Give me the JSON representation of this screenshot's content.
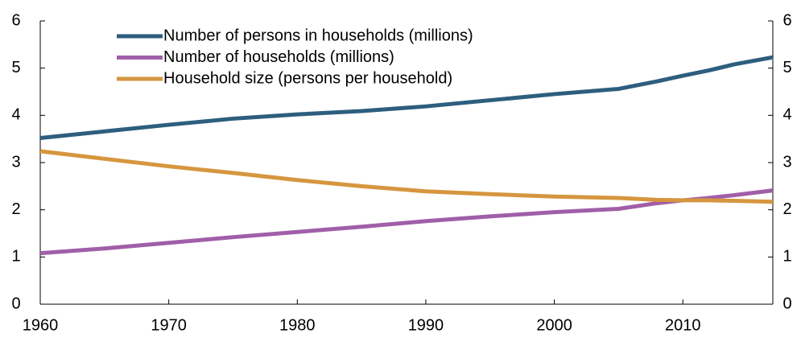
{
  "chart_data": {
    "type": "line",
    "x": [
      1960,
      1965,
      1970,
      1975,
      1980,
      1985,
      1990,
      1995,
      2000,
      2005,
      2008,
      2010,
      2012,
      2014,
      2017
    ],
    "series": [
      {
        "name": "Number of persons in households (millions)",
        "color": "#2d5e7e",
        "values": [
          3.52,
          3.66,
          3.8,
          3.93,
          4.02,
          4.09,
          4.19,
          4.32,
          4.45,
          4.56,
          4.72,
          4.84,
          4.95,
          5.08,
          5.23
        ]
      },
      {
        "name": "Number of households (millions)",
        "color": "#a05fa8",
        "values": [
          1.08,
          1.18,
          1.3,
          1.42,
          1.53,
          1.64,
          1.76,
          1.86,
          1.95,
          2.02,
          2.14,
          2.2,
          2.25,
          2.31,
          2.41
        ]
      },
      {
        "name": "Household size (persons per household)",
        "color": "#d6963f",
        "values": [
          3.24,
          3.08,
          2.92,
          2.78,
          2.63,
          2.5,
          2.39,
          2.33,
          2.28,
          2.25,
          2.21,
          2.2,
          2.2,
          2.19,
          2.17
        ]
      }
    ],
    "xlim": [
      1960,
      2017
    ],
    "xticks": [
      1960,
      1970,
      1980,
      1990,
      2000,
      2010
    ],
    "ylim": [
      0,
      6
    ],
    "yticks": [
      0,
      1,
      2,
      3,
      4,
      5,
      6
    ],
    "y2lim": [
      0,
      6
    ],
    "y2ticks": [
      0,
      1,
      2,
      3,
      4,
      5,
      6
    ],
    "legend": "top-left"
  }
}
